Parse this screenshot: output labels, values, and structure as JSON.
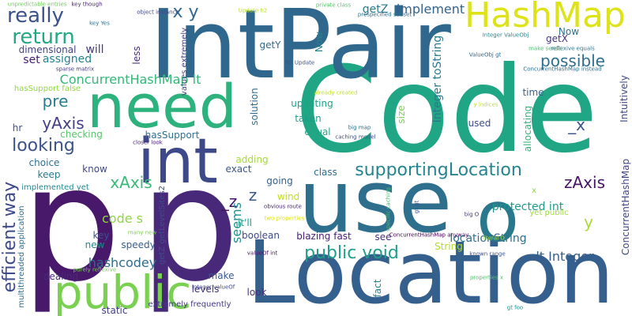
{
  "words": [
    {
      "text": "Code",
      "color": "#21a685"
    },
    {
      "text": "IntPair",
      "color": "#30678d"
    },
    {
      "text": "Location",
      "color": "#355f8d"
    },
    {
      "text": "p",
      "color": "#48186a"
    },
    {
      "text": "p",
      "color": "#482878"
    },
    {
      "text": "use",
      "color": "#2e6f8e"
    },
    {
      "text": "need",
      "color": "#2db27d"
    },
    {
      "text": "int",
      "color": "#3e4989"
    },
    {
      "text": "HashMap",
      "color": "#dde318"
    },
    {
      "text": "public",
      "color": "#7ad151"
    },
    {
      "text": "o",
      "color": "#2a788e"
    },
    {
      "text": "really",
      "color": "#3b528b"
    },
    {
      "text": "x y",
      "color": "#31688e"
    },
    {
      "text": "return",
      "color": "#22a884"
    },
    {
      "text": "efficient way",
      "color": "#3e4a89"
    },
    {
      "text": "supportingLocation",
      "color": "#25858e"
    },
    {
      "text": "public void",
      "color": "#1f9e89"
    },
    {
      "text": "looking",
      "color": "#3b528b"
    },
    {
      "text": "ConcurrentHashMap lt",
      "color": "#35b779"
    },
    {
      "text": "pre",
      "color": "#287d8e"
    },
    {
      "text": "yAxis",
      "color": "#433e85"
    },
    {
      "text": "zAxis",
      "color": "#471365"
    },
    {
      "text": "xAxis",
      "color": "#38b977"
    },
    {
      "text": "possible",
      "color": "#2e6e8e"
    },
    {
      "text": "getZ",
      "color": "#2a778e"
    },
    {
      "text": "implement",
      "color": "#33638d"
    },
    {
      "text": "lt Integer",
      "color": "#355e8d"
    },
    {
      "text": "hashcodey",
      "color": "#2e6d8e"
    },
    {
      "text": "code s",
      "color": "#8fd744"
    },
    {
      "text": "_x",
      "color": "#3b528b"
    },
    {
      "text": "z",
      "color": "#38598c"
    },
    {
      "text": "_z",
      "color": "#471164"
    },
    {
      "text": "y",
      "color": "#a8db34"
    },
    {
      "text": "seems",
      "color": "#21918c"
    },
    {
      "text": "locationString",
      "color": "#2e6e8e"
    },
    {
      "text": "protected int",
      "color": "#1f988b"
    },
    {
      "text": "Integer toString",
      "color": "#2a788e"
    },
    {
      "text": "ConcurrentHashMap",
      "color": "#404688"
    },
    {
      "text": "Intuitively",
      "color": "#3e4989"
    },
    {
      "text": "will",
      "color": "#453882"
    },
    {
      "text": "set",
      "color": "#482071"
    },
    {
      "text": "dimensional",
      "color": "#414487"
    },
    {
      "text": "assigned",
      "color": "#26828e"
    },
    {
      "text": "getY",
      "color": "#31688e"
    },
    {
      "text": "getX",
      "color": "#46337e"
    },
    {
      "text": "less",
      "color": "#472c7a"
    },
    {
      "text": "time",
      "color": "#355f8d"
    },
    {
      "text": "hasSupport",
      "color": "#2d708e"
    },
    {
      "text": "checking",
      "color": "#56c667"
    },
    {
      "text": "updating",
      "color": "#1fa188"
    },
    {
      "text": "taken",
      "color": "#1e9c89"
    },
    {
      "text": "equal",
      "color": "#22a785"
    },
    {
      "text": "size",
      "color": "#7ad151"
    },
    {
      "text": "used",
      "color": "#3d4d8a"
    },
    {
      "text": "allocating",
      "color": "#31b57b"
    },
    {
      "text": "solution",
      "color": "#2d718e"
    },
    {
      "text": "values extremely",
      "color": "#433e85"
    },
    {
      "text": "Now",
      "color": "#26828e"
    },
    {
      "text": "key",
      "color": "#3b528b"
    },
    {
      "text": "keep",
      "color": "#287c8e"
    },
    {
      "text": "choice",
      "color": "#2c728e"
    },
    {
      "text": "know",
      "color": "#3f4889"
    },
    {
      "text": "exact",
      "color": "#38598c"
    },
    {
      "text": "going",
      "color": "#355f8d"
    },
    {
      "text": "wind",
      "color": "#c2df23"
    },
    {
      "text": "class",
      "color": "#2f6b8e"
    },
    {
      "text": "adding",
      "color": "#a5db36"
    },
    {
      "text": "boolean",
      "color": "#3e4989"
    },
    {
      "text": "it'll",
      "color": "#1f9a8a"
    },
    {
      "text": "new",
      "color": "#24878e"
    },
    {
      "text": "speedy",
      "color": "#365c8d"
    },
    {
      "text": "blazing fast",
      "color": "#482173"
    },
    {
      "text": "see",
      "color": "#472d7b"
    },
    {
      "text": "String",
      "color": "#b2dd2d"
    },
    {
      "text": "fact",
      "color": "#25858e"
    },
    {
      "text": "levels",
      "color": "#46327e"
    },
    {
      "text": "dealing",
      "color": "#472a7a"
    },
    {
      "text": "make",
      "color": "#375a8c"
    },
    {
      "text": "look",
      "color": "#46307e"
    },
    {
      "text": "static",
      "color": "#433e85"
    },
    {
      "text": "extremely frequently",
      "color": "#453882"
    },
    {
      "text": "getZ getLevelSites2",
      "color": "#3c4f8a"
    },
    {
      "text": "yet public",
      "color": "#a0da39"
    },
    {
      "text": "implemented yet",
      "color": "#23898e"
    },
    {
      "text": "hr",
      "color": "#3b528b"
    },
    {
      "text": "hasSupport false",
      "color": "#8fd744"
    },
    {
      "text": "multithreaded application",
      "color": "#2d708e"
    },
    {
      "text": "unpredictable entries",
      "color": "#6ccd5a"
    },
    {
      "text": "key though",
      "color": "#482475"
    },
    {
      "text": "object instance",
      "color": "#3f4788"
    },
    {
      "text": "Update h2",
      "color": "#b8de29"
    },
    {
      "text": "private class",
      "color": "#52c569"
    },
    {
      "text": "prespecified subset",
      "color": "#2c728e"
    },
    {
      "text": "Integer ValueObj",
      "color": "#24878e"
    },
    {
      "text": "ValueObj gt",
      "color": "#31688e"
    },
    {
      "text": "make sense",
      "color": "#4ac16d"
    },
    {
      "text": "reflexive equals",
      "color": "#2b748e"
    },
    {
      "text": "ConcurrentHashMap instead",
      "color": "#2e6f8e"
    },
    {
      "text": "sparse matrix",
      "color": "#453781"
    },
    {
      "text": "h2 Update",
      "color": "#3b528b"
    },
    {
      "text": "already created",
      "color": "#c2df23"
    },
    {
      "text": "y indices",
      "color": "#bddf26"
    },
    {
      "text": "big map",
      "color": "#2c728e"
    },
    {
      "text": "caching model",
      "color": "#3d4e8a"
    },
    {
      "text": "closer look",
      "color": "#482374"
    },
    {
      "text": "obvious route",
      "color": "#482677"
    },
    {
      "text": "two properties",
      "color": "#dde318"
    },
    {
      "text": "specific caching",
      "color": "#42be71"
    },
    {
      "text": "gt gt",
      "color": "#3b528b"
    },
    {
      "text": "big O",
      "color": "#46337e"
    },
    {
      "text": "literal O",
      "color": "#a8db34"
    },
    {
      "text": "known range",
      "color": "#3b528b"
    },
    {
      "text": "valueOf int",
      "color": "#48186a"
    },
    {
      "text": "ConcurrentHashMap anyway",
      "color": "#440154"
    },
    {
      "text": "many new",
      "color": "#7ad151"
    },
    {
      "text": "purely reflexive",
      "color": "#77d153"
    },
    {
      "text": "Integer valueOf",
      "color": "#3e4989"
    },
    {
      "text": "properties x",
      "color": "#52c569"
    },
    {
      "text": "gt foo",
      "color": "#1f948c"
    },
    {
      "text": "key Yes",
      "color": "#2c728e"
    },
    {
      "text": "Now",
      "color": "#2c728e"
    },
    {
      "text": "x",
      "color": "#8fd744"
    }
  ]
}
